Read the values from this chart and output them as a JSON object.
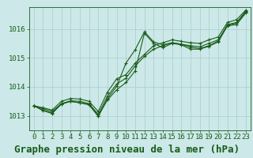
{
  "background_color": "#cce8e8",
  "grid_color": "#aacccc",
  "line_color": "#1a5c1a",
  "title": "Graphe pression niveau de la mer (hPa)",
  "xlim": [
    -0.5,
    23.5
  ],
  "ylim": [
    1012.5,
    1016.75
  ],
  "yticks": [
    1013,
    1014,
    1015,
    1016
  ],
  "xticks": [
    0,
    1,
    2,
    3,
    4,
    5,
    6,
    7,
    8,
    9,
    10,
    11,
    12,
    13,
    14,
    15,
    16,
    17,
    18,
    19,
    20,
    21,
    22,
    23
  ],
  "series": [
    [
      1013.35,
      1013.2,
      1013.1,
      1013.4,
      1013.5,
      1013.45,
      1013.4,
      1013.0,
      1013.55,
      1013.9,
      1014.15,
      1014.55,
      1015.85,
      1015.5,
      1015.35,
      1015.5,
      1015.45,
      1015.3,
      1015.3,
      1015.4,
      1015.55,
      1016.1,
      1016.15,
      1016.55
    ],
    [
      1013.35,
      1013.25,
      1013.15,
      1013.42,
      1013.52,
      1013.5,
      1013.42,
      1013.05,
      1013.68,
      1014.1,
      1014.3,
      1014.72,
      1015.05,
      1015.3,
      1015.42,
      1015.52,
      1015.47,
      1015.42,
      1015.38,
      1015.5,
      1015.62,
      1016.12,
      1016.2,
      1016.58
    ],
    [
      1013.35,
      1013.28,
      1013.2,
      1013.5,
      1013.6,
      1013.58,
      1013.5,
      1013.15,
      1013.82,
      1014.28,
      1014.42,
      1014.82,
      1015.12,
      1015.42,
      1015.52,
      1015.62,
      1015.57,
      1015.52,
      1015.5,
      1015.62,
      1015.72,
      1016.22,
      1016.32,
      1016.65
    ],
    [
      1013.35,
      1013.18,
      1013.08,
      1013.42,
      1013.5,
      1013.45,
      1013.38,
      1012.98,
      1013.6,
      1014.02,
      1014.82,
      1015.28,
      1015.9,
      1015.55,
      1015.45,
      1015.52,
      1015.47,
      1015.37,
      1015.32,
      1015.42,
      1015.58,
      1016.15,
      1016.22,
      1016.62
    ]
  ],
  "title_fontsize": 9,
  "tick_fontsize": 6.5,
  "marker": "+",
  "marker_size": 3,
  "line_width": 0.8
}
